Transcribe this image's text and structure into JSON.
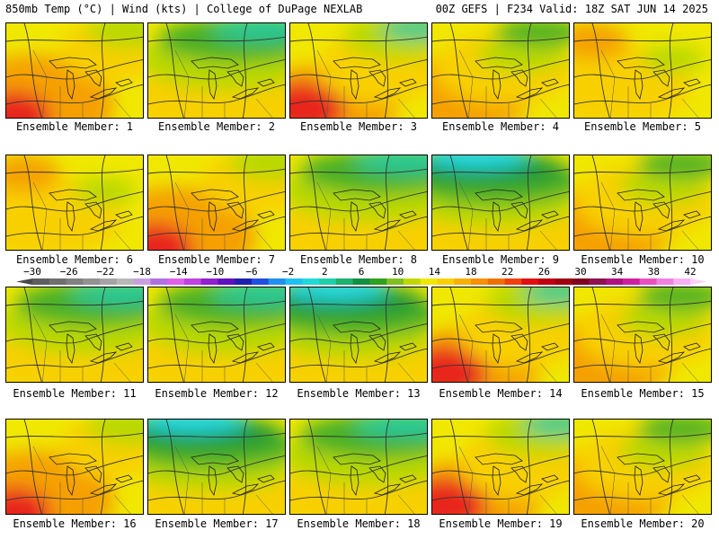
{
  "header": {
    "left": "850mb Temp (°C) | Wind (kts) | College of DuPage NEXLAB",
    "right": "00Z GEFS | F234 Valid: 18Z SAT JUN 14 2025"
  },
  "panels": [
    {
      "label": "Ensemble Member: 1",
      "scheme": "warm"
    },
    {
      "label": "Ensemble Member: 2",
      "scheme": "coolnorth"
    },
    {
      "label": "Ensemble Member: 3",
      "scheme": "warmsw"
    },
    {
      "label": "Ensemble Member: 4",
      "scheme": "mixed"
    },
    {
      "label": "Ensemble Member: 5",
      "scheme": "yellow"
    },
    {
      "label": "Ensemble Member: 6",
      "scheme": "yellow"
    },
    {
      "label": "Ensemble Member: 7",
      "scheme": "warm"
    },
    {
      "label": "Ensemble Member: 8",
      "scheme": "coolnorth"
    },
    {
      "label": "Ensemble Member: 9",
      "scheme": "cold"
    },
    {
      "label": "Ensemble Member: 10",
      "scheme": "mixed"
    },
    {
      "label": "Ensemble Member: 11",
      "scheme": "coolnorth"
    },
    {
      "label": "Ensemble Member: 12",
      "scheme": "coolnorth"
    },
    {
      "label": "Ensemble Member: 13",
      "scheme": "cold"
    },
    {
      "label": "Ensemble Member: 14",
      "scheme": "warmsw"
    },
    {
      "label": "Ensemble Member: 15",
      "scheme": "mixed"
    },
    {
      "label": "Ensemble Member: 16",
      "scheme": "warm"
    },
    {
      "label": "Ensemble Member: 17",
      "scheme": "cold"
    },
    {
      "label": "Ensemble Member: 18",
      "scheme": "coolnorth"
    },
    {
      "label": "Ensemble Member: 19",
      "scheme": "warmsw"
    },
    {
      "label": "Ensemble Member: 20",
      "scheme": "mixed"
    }
  ],
  "colorbar": {
    "ticks": [
      "-30",
      "-26",
      "-22",
      "-18",
      "-14",
      "-10",
      "-6",
      "-2",
      "2",
      "6",
      "10",
      "14",
      "18",
      "22",
      "26",
      "30",
      "34",
      "38",
      "42"
    ],
    "colors": [
      "#5e5e5e",
      "#6f6f6f",
      "#808080",
      "#929292",
      "#a4a4a4",
      "#b8b8b8",
      "#c8a0e0",
      "#b070e0",
      "#e060e8",
      "#c040e0",
      "#9020d0",
      "#6010c0",
      "#2020b0",
      "#2050e0",
      "#2090f0",
      "#20c0f0",
      "#20d8d8",
      "#20d0a8",
      "#20b070",
      "#109040",
      "#30a020",
      "#80c020",
      "#c0d800",
      "#f0e800",
      "#f8d000",
      "#f8b000",
      "#f89000",
      "#f07000",
      "#f04010",
      "#e01010",
      "#c00010",
      "#a00010",
      "#800020",
      "#901050",
      "#b01080",
      "#d020a0",
      "#e850c0",
      "#f080e0",
      "#f8b0f0"
    ],
    "palette": {
      "red": "#e8281e",
      "orange": "#f5a000",
      "gold": "#f8d000",
      "yellow": "#f0e800",
      "lime": "#b8d800",
      "green": "#4ab028",
      "dkgreen": "#1a9838",
      "teal": "#20c898",
      "cyan": "#28d8e0"
    }
  }
}
